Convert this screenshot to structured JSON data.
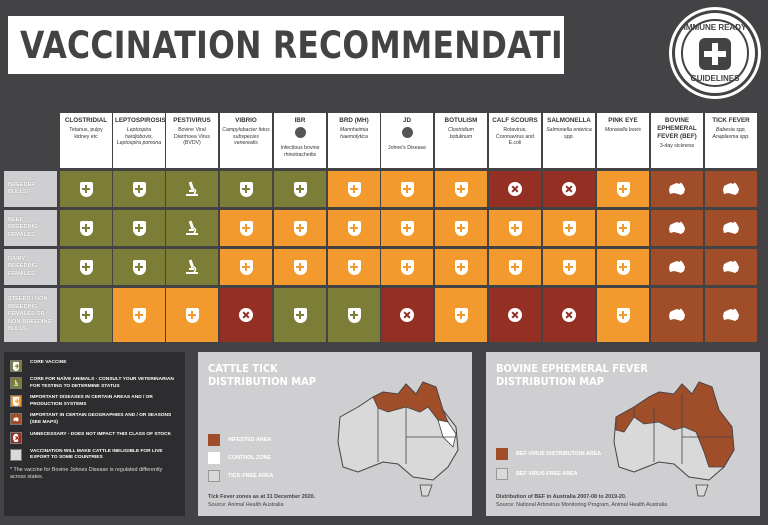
{
  "title": "VACCINATION RECOMMENDATIONS",
  "badge": {
    "top": "IMMUNE READY",
    "bottom": "GUIDELINES"
  },
  "columns": [
    {
      "name": "CLOSTRIDIAL",
      "sub": "Tetanus, pulpy kidney etc",
      "italic": false,
      "globe": false
    },
    {
      "name": "LEPTOSPIROSIS",
      "sub": "Leptospira hardjobovis, Leptospira pomona",
      "italic": true,
      "globe": false
    },
    {
      "name": "PESTIVIRUS",
      "sub": "Bovine Viral Diarrhoea Virus (BVDV)",
      "italic": false,
      "globe": false
    },
    {
      "name": "VIBRIO",
      "sub": "Campylobacter fetus subspecies venerealis",
      "italic": true,
      "globe": false
    },
    {
      "name": "IBR",
      "sub": "Infectious bovine rhinotracheitis",
      "italic": false,
      "globe": true
    },
    {
      "name": "BRD (MH)",
      "sub": "Mannheimia haemolytica",
      "italic": true,
      "globe": false
    },
    {
      "name": "JD",
      "sub": "Johne's Disease",
      "italic": false,
      "globe": true
    },
    {
      "name": "BOTULISM",
      "sub": "Clostridium botulinum",
      "italic": true,
      "globe": false
    },
    {
      "name": "CALF SCOURS",
      "sub": "Rotavirus, Coronavirus and E.coli",
      "italic": false,
      "globe": false
    },
    {
      "name": "SALMONELLA",
      "sub": "Salmonella enterica spp.",
      "italic": true,
      "globe": false
    },
    {
      "name": "PINK EYE",
      "sub": "Moraxella bovis",
      "italic": true,
      "globe": false
    },
    {
      "name": "BOVINE EPHEMERAL FEVER (BEF)",
      "sub": "3-day sickness",
      "italic": false,
      "globe": false
    },
    {
      "name": "TICK FEVER",
      "sub": "Babesia spp, Anaplasma spp.",
      "italic": true,
      "globe": false
    }
  ],
  "rows": [
    {
      "label": "BREEDER BULLS",
      "cells": [
        "core",
        "core",
        "naive",
        "core",
        "core",
        "imp",
        "imp",
        "imp",
        "unn",
        "unn",
        "imp",
        "geo",
        "geo"
      ]
    },
    {
      "label": "BEEF BREEDING FEMALES",
      "cells": [
        "core",
        "core",
        "naive",
        "imp",
        "imp",
        "imp",
        "imp",
        "imp",
        "imp",
        "imp",
        "imp",
        "geo",
        "geo"
      ]
    },
    {
      "label": "DAIRY BREEDING FEMALES",
      "cells": [
        "core",
        "core",
        "naive",
        "imp",
        "imp",
        "imp",
        "imp",
        "imp",
        "imp",
        "imp",
        "imp",
        "geo",
        "geo"
      ]
    },
    {
      "label": "STEERS / NON-BREEDING FEMALES OR NON-BREEDING BULLS",
      "cells": [
        "core",
        "imp",
        "imp",
        "unn",
        "core",
        "core",
        "unn",
        "imp",
        "unn",
        "unn",
        "imp",
        "geo",
        "geo"
      ]
    }
  ],
  "legend": {
    "items": [
      {
        "key": "core",
        "text": "CORE VACCINE"
      },
      {
        "key": "naive",
        "text": "CORE FOR NAÏVE ANIMALS - CONSULT YOUR VETERINARIAN FOR TESTING TO DETERMINE STATUS"
      },
      {
        "key": "imp",
        "text": "IMPORTANT DISEASES IN CERTAIN AREAS AND / OR PRODUCTION SYSTEMS"
      },
      {
        "key": "geo",
        "text": "IMPORTANT IN CERTAIN GEOGRAPHIES AND / OR SEASONS (SEE MAPS)"
      },
      {
        "key": "unn",
        "text": "UNNECESSARY - DOES NOT IMPACT THIS CLASS OF STOCK"
      },
      {
        "key": "live",
        "text": "VACCINATION WILL MAKE CATTLE INELIGIBLE FOR LIVE EXPORT TO SOME COUNTRIES"
      }
    ],
    "note": "* The vaccine for Bovine Johnes Disease is regulated differently across states."
  },
  "tick_map": {
    "title1": "CATTLE TICK",
    "title2": "DISTRIBUTION MAP",
    "legend": [
      "INFESTED AREA",
      "CONTROL ZONE",
      "TICK-FREE AREA"
    ],
    "foot_bold": "Tick Fever zones as at 31 December 2020.",
    "foot": "Source: Animal Health Australia"
  },
  "bef_map": {
    "title1": "BOVINE EPHEMERAL FEVER",
    "title2": "DISTRIBUTION MAP",
    "legend": [
      "BEF VIRUS DISTRIBUTION AREA",
      "BEF VIRUS-FREE AREA"
    ],
    "foot_bold": "Distribution of BEF in Australia 2007-08 to 2019-20.",
    "foot": "Source: National Arbovirus Monitoring Program, Animal Health Australia"
  },
  "colors": {
    "core": "#7c7d36",
    "imp": "#f29a2e",
    "geo": "#a04e2a",
    "unn": "#942f23",
    "bg": "#434244"
  }
}
